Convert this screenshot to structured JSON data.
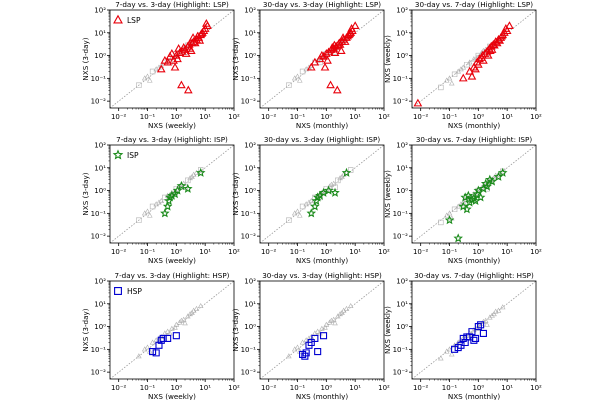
{
  "chart_data": {
    "type": "scatter",
    "layout": "3x3 grid",
    "xscale": "log",
    "yscale": "log",
    "xlim": [
      0.005,
      100
    ],
    "ylim": [
      0.005,
      100
    ],
    "tick_labels": [
      "10⁻²",
      "10⁻¹",
      "10⁰",
      "10¹",
      "10²"
    ],
    "diagonal": "y = x (dotted grey)",
    "background_points_color": "#b0b0b0",
    "groups": [
      {
        "code": "LSP",
        "label": "LSP",
        "marker": "triangle",
        "color": "#e8000b"
      },
      {
        "code": "ISP",
        "label": "ISP",
        "marker": "star",
        "color": "#1a8a1a"
      },
      {
        "code": "HSP",
        "label": "HSP",
        "marker": "square",
        "color": "#0000d0"
      }
    ],
    "rows": [
      {
        "group": "LSP",
        "titles": [
          "7-day vs. 3-day  (Highlight: LSP)",
          "30-day vs. 3-day  (Highlight: LSP)",
          "30-day vs. 7-day  (Highlight: LSP)"
        ]
      },
      {
        "group": "ISP",
        "titles": [
          "7-day vs. 3-day  (Highlight: ISP)",
          "30-day vs. 3-day  (Highlight: ISP)",
          "30-day vs. 7-day  (Highlight: ISP)"
        ]
      },
      {
        "group": "HSP",
        "titles": [
          "7-day vs. 3-day  (Highlight: HSP)",
          "30-day vs. 3-day  (Highlight: HSP)",
          "30-day vs. 7-day  (Highlight: HSP)"
        ]
      }
    ],
    "columns": [
      {
        "xlabel": "NXS (weekly)",
        "ylabel": "NXS (3-day)"
      },
      {
        "xlabel": "NXS (monthly)",
        "ylabel": "NXS (3-day)"
      },
      {
        "xlabel": "NXS (monthly)",
        "ylabel": "NXS (weekly)"
      }
    ],
    "data": {
      "LSP": [
        {
          "x": [
            0.5,
            0.8,
            1.0,
            1.3,
            1.6,
            2.0,
            2.5,
            3.0,
            3.5,
            4.0,
            5.0,
            6.0,
            7.0,
            8.0,
            10,
            12,
            0.3,
            0.6,
            1.1,
            1.8,
            2.2,
            2.8,
            3.3,
            4.5,
            5.5,
            6.5,
            9.0,
            1.5,
            2.6,
            0.9,
            0.4,
            0.7,
            1.2,
            3.8,
            7.5,
            11
          ],
          "y": [
            0.5,
            0.6,
            1.0,
            1.3,
            1.5,
            1.8,
            2.5,
            2.0,
            3.5,
            4.0,
            5.0,
            6.0,
            8.0,
            10,
            15,
            20,
            0.25,
            0.9,
            0.7,
            2.2,
            1.2,
            3.0,
            1.6,
            3.5,
            7.0,
            4.5,
            12,
            0.05,
            0.03,
            0.3,
            0.6,
            1.2,
            2.0,
            6.0,
            9.0,
            25
          ]
        },
        {
          "x": [
            0.4,
            0.6,
            0.8,
            1.0,
            1.2,
            1.5,
            1.8,
            2.2,
            2.6,
            3.0,
            3.5,
            4.0,
            5.0,
            6.0,
            7.0,
            8.0,
            10,
            0.3,
            0.7,
            1.1,
            1.6,
            2.0,
            2.8,
            3.3,
            4.5,
            5.5,
            7.5,
            1.4,
            2.4,
            0.9,
            1.9,
            3.8,
            6.5
          ],
          "y": [
            0.5,
            0.7,
            0.9,
            1.2,
            1.4,
            1.8,
            2.0,
            2.5,
            3.0,
            3.0,
            4.0,
            5.0,
            6.0,
            8.0,
            10,
            12,
            20,
            0.3,
            1.0,
            0.6,
            2.2,
            1.3,
            3.5,
            1.6,
            4.0,
            7.0,
            15,
            0.05,
            0.03,
            0.3,
            2.8,
            6.0,
            9.0
          ]
        },
        {
          "x": [
            0.008,
            0.3,
            0.5,
            0.7,
            0.9,
            1.1,
            1.4,
            1.7,
            2.0,
            2.4,
            2.8,
            3.3,
            4.0,
            5.0,
            6.0,
            7.0,
            8.0,
            10,
            12,
            0.6,
            1.0,
            1.5,
            2.2,
            3.0,
            4.5,
            5.5,
            9.0,
            0.8,
            1.3,
            2.6,
            3.6,
            6.5
          ],
          "y": [
            0.008,
            0.1,
            0.2,
            0.3,
            0.5,
            0.7,
            1.0,
            1.2,
            1.5,
            2.0,
            2.5,
            3.0,
            4.0,
            5.0,
            6.0,
            8.0,
            10,
            12,
            20,
            0.12,
            0.4,
            0.6,
            1.0,
            1.8,
            3.5,
            4.5,
            15,
            0.25,
            0.8,
            1.6,
            2.8,
            7.0
          ]
        }
      ],
      "ISP": [
        {
          "x": [
            0.4,
            0.5,
            0.55,
            0.6,
            0.7,
            0.9,
            1.1,
            1.5,
            2.5,
            7.0
          ],
          "y": [
            0.1,
            0.2,
            0.35,
            0.5,
            0.6,
            0.7,
            1.0,
            1.6,
            1.2,
            6.0
          ]
        },
        {
          "x": [
            0.3,
            0.4,
            0.45,
            0.5,
            0.6,
            0.8,
            1.2,
            2.0,
            5.0
          ],
          "y": [
            0.1,
            0.2,
            0.35,
            0.5,
            0.6,
            0.8,
            1.0,
            0.8,
            6.0
          ]
        },
        {
          "x": [
            0.1,
            0.2,
            0.3,
            0.4,
            0.5,
            0.6,
            0.7,
            0.8,
            1.0,
            1.2,
            1.5,
            1.8,
            2.0,
            2.5,
            3.0,
            5.0,
            7.0,
            0.35,
            0.45,
            0.9
          ],
          "y": [
            0.05,
            0.008,
            0.2,
            0.15,
            0.3,
            0.4,
            0.45,
            0.35,
            1.0,
            0.5,
            1.2,
            2.0,
            1.5,
            3.0,
            2.5,
            4.0,
            6.0,
            0.5,
            0.6,
            0.7
          ]
        }
      ],
      "HSP": [
        {
          "x": [
            0.15,
            0.2,
            0.25,
            0.3,
            0.35,
            0.5,
            1.0
          ],
          "y": [
            0.08,
            0.07,
            0.15,
            0.25,
            0.3,
            0.3,
            0.4
          ]
        },
        {
          "x": [
            0.15,
            0.18,
            0.2,
            0.25,
            0.3,
            0.4,
            0.5,
            0.8
          ],
          "y": [
            0.06,
            0.05,
            0.07,
            0.15,
            0.2,
            0.3,
            0.08,
            0.4
          ]
        },
        {
          "x": [
            0.15,
            0.2,
            0.25,
            0.3,
            0.35,
            0.4,
            0.5,
            0.6,
            0.7,
            0.8,
            1.0,
            1.2,
            1.5
          ],
          "y": [
            0.1,
            0.12,
            0.15,
            0.3,
            0.2,
            0.35,
            0.35,
            0.6,
            0.25,
            0.3,
            1.0,
            1.2,
            0.5
          ]
        }
      ]
    },
    "background": [
      {
        "x": [
          0.05,
          0.08,
          0.1,
          0.15,
          0.2,
          0.3,
          0.4,
          0.5,
          0.7,
          1.0,
          1.3,
          1.8,
          2.5,
          3.5,
          5.0,
          7.0,
          0.12,
          0.25,
          0.6,
          0.9,
          1.5,
          2.0,
          3.0,
          4.0
        ],
        "y": [
          0.05,
          0.1,
          0.12,
          0.2,
          0.25,
          0.35,
          0.5,
          0.6,
          0.8,
          1.2,
          1.5,
          2.0,
          2.8,
          4.0,
          6.0,
          8.0,
          0.08,
          0.3,
          0.5,
          0.9,
          1.8,
          1.4,
          3.5,
          5.0
        ]
      },
      {
        "x": [
          0.05,
          0.08,
          0.1,
          0.15,
          0.2,
          0.3,
          0.4,
          0.5,
          0.7,
          1.0,
          1.3,
          1.8,
          2.5,
          3.5,
          5.0,
          7.0,
          0.12,
          0.25,
          0.6,
          0.9,
          1.5,
          2.0,
          3.0,
          4.0
        ],
        "y": [
          0.05,
          0.1,
          0.12,
          0.2,
          0.25,
          0.35,
          0.5,
          0.6,
          0.8,
          1.2,
          1.5,
          2.0,
          2.8,
          4.0,
          6.0,
          8.0,
          0.08,
          0.3,
          0.5,
          0.9,
          1.8,
          1.4,
          3.5,
          5.0
        ]
      },
      {
        "x": [
          0.05,
          0.08,
          0.1,
          0.15,
          0.2,
          0.3,
          0.4,
          0.5,
          0.7,
          1.0,
          1.3,
          1.8,
          2.5,
          3.5,
          5.0,
          7.0,
          0.12,
          0.25,
          0.6,
          0.9,
          1.5,
          2.0,
          3.0,
          4.0
        ],
        "y": [
          0.04,
          0.08,
          0.1,
          0.15,
          0.2,
          0.3,
          0.4,
          0.5,
          0.7,
          1.0,
          1.3,
          1.8,
          2.5,
          3.5,
          5.0,
          7.0,
          0.06,
          0.25,
          0.45,
          0.8,
          1.6,
          1.2,
          3.0,
          4.5
        ]
      }
    ]
  }
}
